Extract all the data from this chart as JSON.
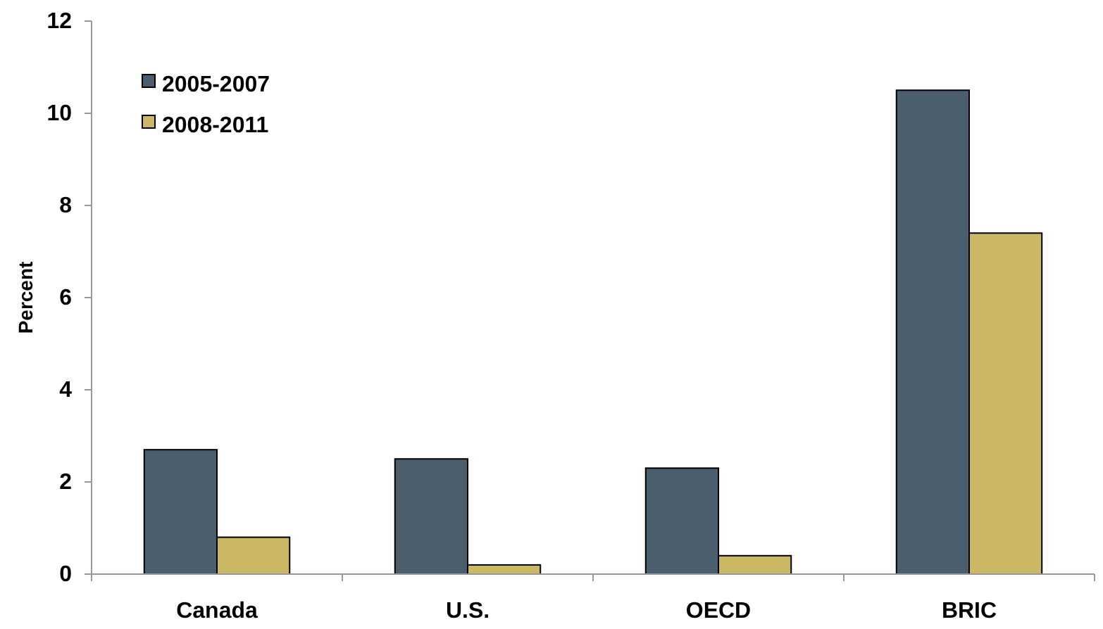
{
  "chart_data": {
    "type": "bar",
    "ylabel": "Percent",
    "categories": [
      "Canada",
      "U.S.",
      "OECD",
      "BRIC"
    ],
    "series": [
      {
        "name": "2005-2007",
        "color": "#4a5e6e",
        "values": [
          2.7,
          2.5,
          2.3,
          10.5
        ]
      },
      {
        "name": "2008-2011",
        "color": "#cbb865",
        "values": [
          0.8,
          0.2,
          0.4,
          7.4
        ]
      }
    ],
    "ylim": [
      0,
      12
    ],
    "yticks": [
      0,
      2,
      4,
      6,
      8,
      10,
      12
    ],
    "grid": false,
    "legend": "top left"
  }
}
